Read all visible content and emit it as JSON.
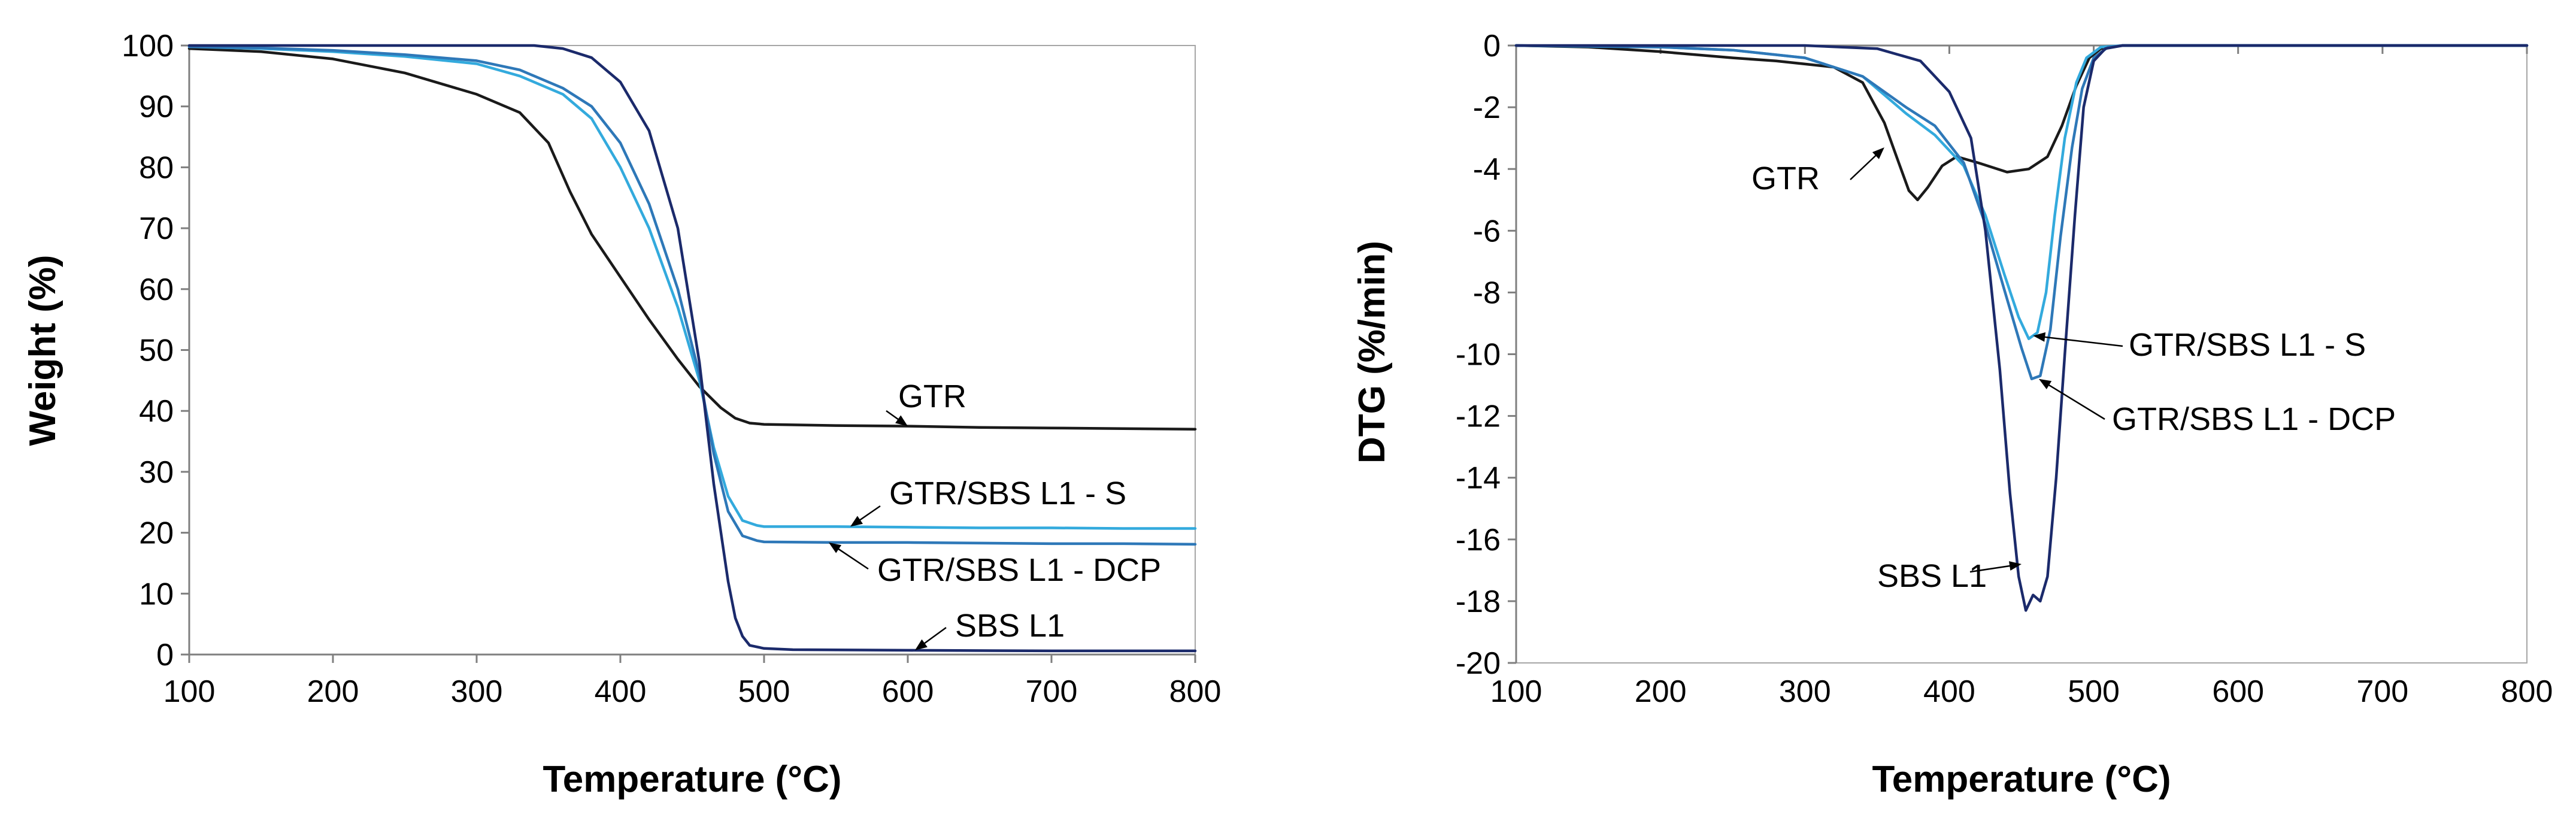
{
  "chart_data": [
    {
      "type": "line",
      "title": "",
      "xlabel": "Temperature (°C)",
      "ylabel": "Weight (%)",
      "xlim": [
        100,
        800
      ],
      "ylim": [
        0,
        100
      ],
      "xticks": [
        100,
        200,
        300,
        400,
        500,
        600,
        700,
        800
      ],
      "yticks": [
        0,
        10,
        20,
        30,
        40,
        50,
        60,
        70,
        80,
        90,
        100
      ],
      "grid": false,
      "series": [
        {
          "name": "GTR",
          "color": "#1a1a1a",
          "x": [
            100,
            150,
            200,
            250,
            300,
            330,
            350,
            365,
            380,
            400,
            420,
            440,
            455,
            470,
            480,
            490,
            500,
            550,
            600,
            650,
            700,
            750,
            800
          ],
          "y": [
            99.5,
            99,
            97.8,
            95.5,
            92,
            89,
            84,
            76,
            69,
            62,
            55,
            48.5,
            44,
            40.5,
            38.8,
            38,
            37.8,
            37.6,
            37.5,
            37.3,
            37.2,
            37.1,
            37
          ]
        },
        {
          "name": "GTR/SBS L1 - S",
          "color": "#33aadd",
          "x": [
            100,
            150,
            200,
            250,
            300,
            330,
            360,
            380,
            400,
            420,
            440,
            455,
            465,
            475,
            485,
            495,
            500,
            550,
            600,
            650,
            700,
            750,
            800
          ],
          "y": [
            99.8,
            99.5,
            99,
            98.2,
            97,
            95,
            92,
            88,
            80,
            70,
            57,
            45,
            34,
            26,
            22,
            21.2,
            21,
            21,
            20.9,
            20.8,
            20.8,
            20.7,
            20.7
          ]
        },
        {
          "name": "GTR/SBS L1 - DCP",
          "color": "#2e78b8",
          "x": [
            100,
            150,
            200,
            250,
            300,
            330,
            360,
            380,
            400,
            420,
            440,
            455,
            465,
            475,
            485,
            495,
            500,
            550,
            600,
            650,
            700,
            750,
            800
          ],
          "y": [
            99.8,
            99.6,
            99.2,
            98.5,
            97.5,
            96,
            93,
            90,
            84,
            74,
            60,
            46,
            33,
            23.5,
            19.5,
            18.7,
            18.5,
            18.4,
            18.4,
            18.3,
            18.2,
            18.2,
            18.1
          ]
        },
        {
          "name": "SBS L1",
          "color": "#1b2a6b",
          "x": [
            100,
            200,
            300,
            340,
            360,
            380,
            400,
            420,
            440,
            455,
            465,
            475,
            480,
            485,
            490,
            500,
            520,
            600,
            700,
            800
          ],
          "y": [
            100,
            100,
            100,
            100,
            99.5,
            98,
            94,
            86,
            70,
            48,
            28,
            12,
            6,
            3,
            1.5,
            1,
            0.8,
            0.7,
            0.6,
            0.6
          ]
        }
      ],
      "annotations": [
        {
          "text": "GTR",
          "point": [
            600,
            37.5
          ]
        },
        {
          "text": "GTR/SBS L1 - S",
          "point": [
            560,
            21
          ]
        },
        {
          "text": "GTR/SBS L1 - DCP",
          "point": [
            545,
            18.4
          ]
        },
        {
          "text": "SBS L1",
          "point": [
            605,
            0.7
          ]
        }
      ]
    },
    {
      "type": "line",
      "title": "",
      "xlabel": "Temperature (°C)",
      "ylabel": "DTG (%/min)",
      "xlim": [
        100,
        800
      ],
      "ylim": [
        -20,
        0
      ],
      "xticks": [
        100,
        200,
        300,
        400,
        500,
        600,
        700,
        800
      ],
      "yticks": [
        0,
        -2,
        -4,
        -6,
        -8,
        -10,
        -12,
        -14,
        -16,
        -18,
        -20
      ],
      "grid": false,
      "series": [
        {
          "name": "GTR",
          "color": "#1a1a1a",
          "x": [
            100,
            150,
            200,
            250,
            280,
            300,
            320,
            340,
            355,
            365,
            372,
            378,
            385,
            395,
            405,
            420,
            440,
            455,
            468,
            478,
            488,
            497,
            505,
            520,
            600,
            700,
            800
          ],
          "y": [
            0,
            -0.05,
            -0.2,
            -0.4,
            -0.5,
            -0.6,
            -0.7,
            -1.2,
            -2.5,
            -3.8,
            -4.7,
            -5.0,
            -4.6,
            -3.9,
            -3.6,
            -3.8,
            -4.1,
            -4.0,
            -3.6,
            -2.6,
            -1.3,
            -0.4,
            -0.1,
            0,
            0,
            0,
            0
          ]
        },
        {
          "name": "GTR/SBS L1 - S",
          "color": "#33aadd",
          "x": [
            100,
            200,
            250,
            300,
            340,
            370,
            390,
            410,
            425,
            438,
            448,
            455,
            461,
            467,
            473,
            480,
            488,
            495,
            505,
            520,
            600,
            700,
            800
          ],
          "y": [
            0,
            -0.05,
            -0.15,
            -0.4,
            -1.0,
            -2.2,
            -2.9,
            -3.9,
            -5.5,
            -7.4,
            -8.8,
            -9.5,
            -9.3,
            -8.0,
            -5.5,
            -3.0,
            -1.2,
            -0.4,
            -0.05,
            0,
            0,
            0,
            0
          ]
        },
        {
          "name": "GTR/SBS L1 - DCP",
          "color": "#2e78b8",
          "x": [
            100,
            200,
            250,
            300,
            340,
            370,
            390,
            410,
            425,
            438,
            450,
            457,
            463,
            470,
            477,
            485,
            492,
            500,
            510,
            520,
            600,
            700,
            800
          ],
          "y": [
            0,
            -0.05,
            -0.15,
            -0.4,
            -1.0,
            -2.0,
            -2.6,
            -3.8,
            -5.8,
            -7.9,
            -9.8,
            -10.8,
            -10.7,
            -9.2,
            -6.2,
            -3.3,
            -1.4,
            -0.4,
            -0.05,
            0,
            0,
            0,
            0
          ]
        },
        {
          "name": "SBS L1",
          "color": "#1b2a6b",
          "x": [
            100,
            300,
            350,
            380,
            400,
            415,
            425,
            435,
            442,
            448,
            453,
            458,
            463,
            468,
            474,
            480,
            487,
            493,
            500,
            508,
            520,
            600,
            700,
            800
          ],
          "y": [
            0,
            0,
            -0.1,
            -0.5,
            -1.5,
            -3.0,
            -6.0,
            -10.5,
            -14.5,
            -17.2,
            -18.3,
            -17.8,
            -18.0,
            -17.2,
            -14.0,
            -10.0,
            -5.5,
            -2.0,
            -0.5,
            -0.1,
            0,
            0,
            0,
            0
          ]
        }
      ],
      "annotations": [
        {
          "text": "GTR",
          "point": [
            355,
            -3.3
          ]
        },
        {
          "text": "GTR/SBS L1 - S",
          "point": [
            458,
            -9.4
          ]
        },
        {
          "text": "GTR/SBS L1 - DCP",
          "point": [
            462,
            -10.8
          ]
        },
        {
          "text": "SBS L1",
          "point": [
            450,
            -16.8
          ]
        }
      ]
    }
  ]
}
